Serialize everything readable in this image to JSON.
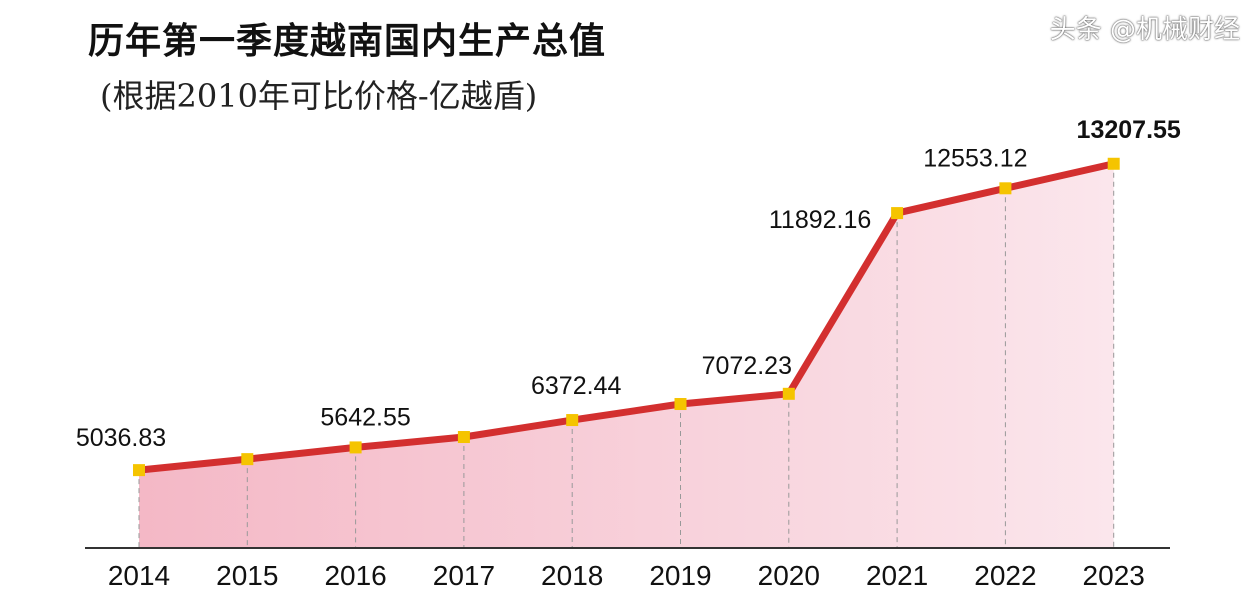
{
  "chart_data": {
    "type": "area",
    "title": "历年第一季度越南国内生产总值",
    "subtitle": "(根据2010年可比价格-亿越盾)",
    "xlabel": "",
    "ylabel": "",
    "categories": [
      "2014",
      "2015",
      "2016",
      "2017",
      "2018",
      "2019",
      "2020",
      "2021",
      "2022",
      "2023"
    ],
    "values": [
      5036.83,
      5330,
      5642.55,
      5920,
      6372.44,
      6800,
      7072.23,
      11892.16,
      12553.12,
      13207.55
    ],
    "data_labels": [
      "5036.83",
      "",
      "5642.55",
      "",
      "6372.44",
      "",
      "7072.23",
      "11892.16",
      "12553.12",
      "13207.55"
    ],
    "ylim": [
      2960,
      14500
    ],
    "grid": false,
    "colors": {
      "line": "#d32f2f",
      "marker": "#f5c400",
      "fill_start": "#f4b8c6",
      "fill_end": "#fbe6ec"
    }
  },
  "watermark": "头条 @机械财经"
}
